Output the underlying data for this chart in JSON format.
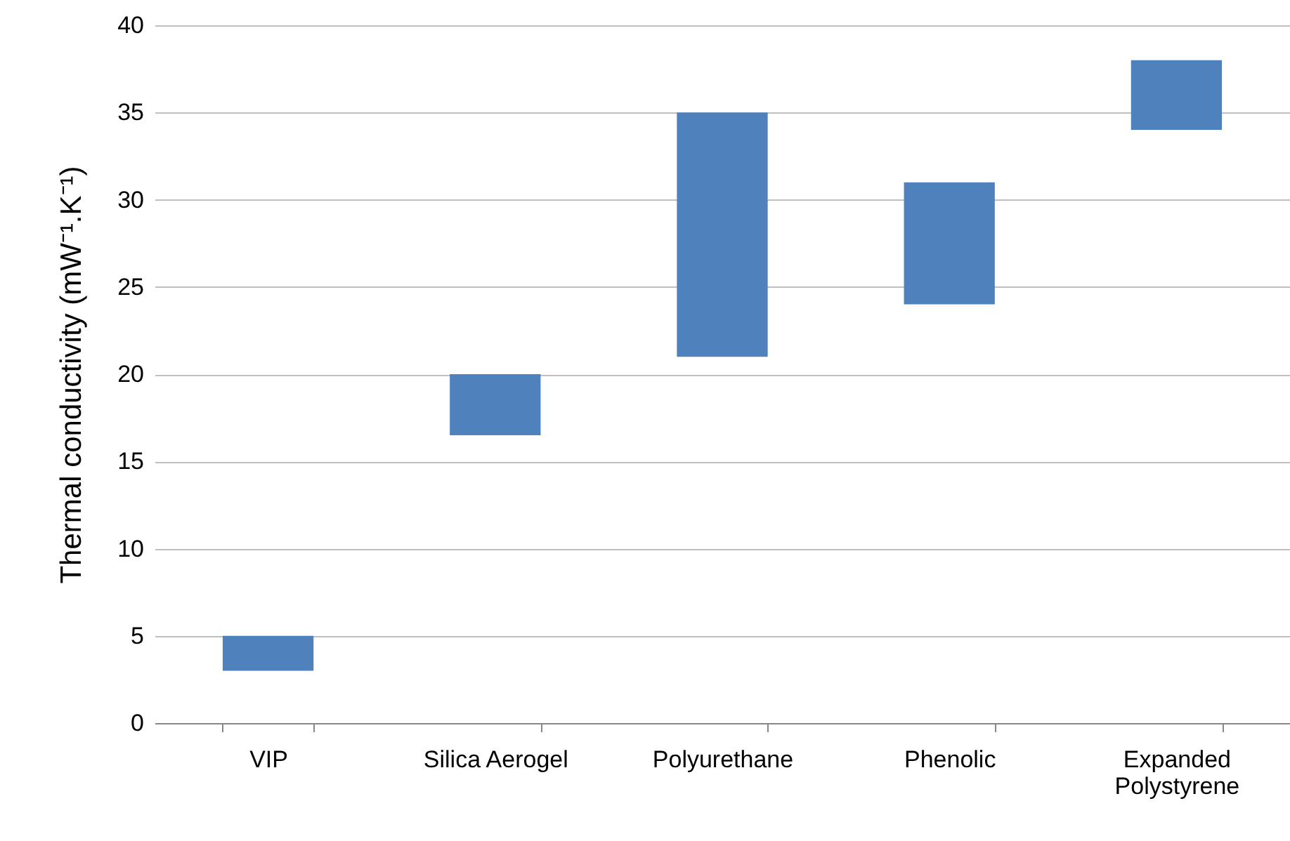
{
  "chart_data": {
    "type": "bar",
    "ylabel": "Thermal conductivity (mW⁻¹.K⁻¹)",
    "categories": [
      "VIP",
      "Silica Aerogel",
      "Polyurethane",
      "Phenolic",
      "Expanded Polystyrene"
    ],
    "base": [
      3,
      16.5,
      21,
      24,
      34
    ],
    "values": [
      2,
      3.5,
      14,
      7,
      4
    ],
    "color": "#4f81bd",
    "ylim": [
      0,
      40
    ],
    "yticks": [
      0,
      5,
      10,
      15,
      20,
      25,
      30,
      35,
      40
    ],
    "grid": "y"
  }
}
